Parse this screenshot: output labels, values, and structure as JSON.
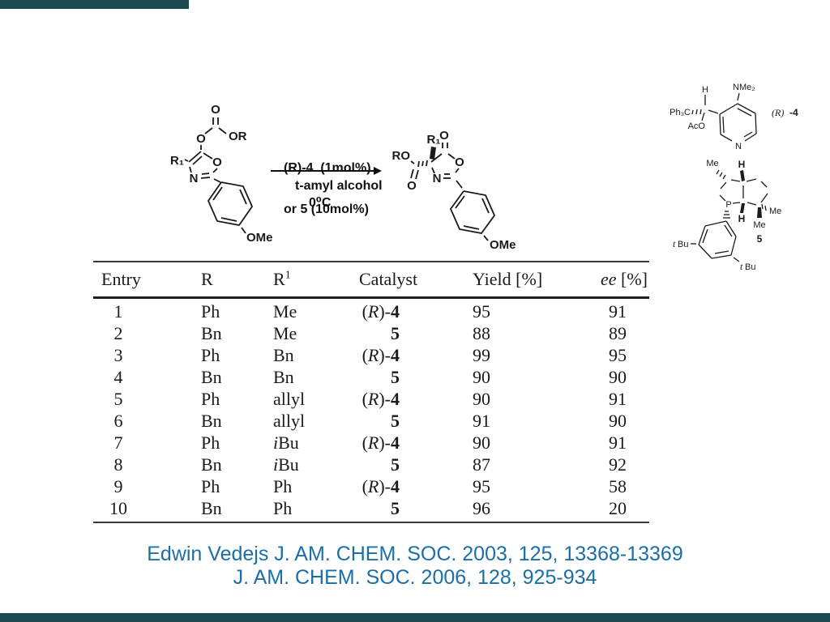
{
  "theme": {
    "accent_bar_color": "#1c4a4e",
    "citation_color": "#1b6fa8"
  },
  "scheme": {
    "reactant": {
      "labels": {
        "o_top": "O",
        "o_ester": "O",
        "or": "OR",
        "r1": "R₁",
        "ring_o": "O",
        "ring_n": "N",
        "ome": "OMe"
      }
    },
    "arrow": {
      "line1": "(R)-4  (1mol%)",
      "line2": "or 5 (10mol%)",
      "below1": "t-amyl alcohol",
      "below2": "0⁰C"
    },
    "product": {
      "labels": {
        "o_top": "O",
        "r1": "R₁",
        "ro": "RO",
        "o_ester": "O",
        "ring_o": "O",
        "ring_n": "N",
        "ome": "OMe"
      }
    },
    "catalyst4": {
      "labels": {
        "h": "H",
        "nme2": "NMe₂",
        "ph3c": "Ph₃C",
        "aco": "AcO",
        "n": "N"
      },
      "tag_r": "(R)",
      "tag_num": "-4"
    },
    "catalyst5": {
      "labels": {
        "me_top": "Me",
        "h_top": "H",
        "p": "P",
        "h_bottom": "H",
        "me_right": "Me",
        "me_bottom": "Me",
        "tbu_left_i": "t",
        "tbu_left": "Bu",
        "tbu_right_i": "t",
        "tbu_right": "Bu"
      },
      "tag": "5"
    }
  },
  "table": {
    "headers": [
      {
        "t": "Entry"
      },
      {
        "t": "R"
      },
      {
        "t": "R",
        "sup": "1"
      },
      {
        "t": "Catalyst"
      },
      {
        "t": "Yield [%]"
      },
      {
        "it": "ee",
        "t": " [%]"
      }
    ],
    "rows": [
      {
        "e": "1",
        "r": "Ph",
        "r1i": "",
        "r1": "Me",
        "c1": "(",
        "ci": "R",
        "c2": ")-",
        "cb": "4",
        "y": "95",
        "ee": "91"
      },
      {
        "e": "2",
        "r": "Bn",
        "r1i": "",
        "r1": "Me",
        "c1": "",
        "ci": "",
        "c2": "",
        "cb": "5",
        "y": "88",
        "ee": "89"
      },
      {
        "e": "3",
        "r": "Ph",
        "r1i": "",
        "r1": "Bn",
        "c1": "(",
        "ci": "R",
        "c2": ")-",
        "cb": "4",
        "y": "99",
        "ee": "95"
      },
      {
        "e": "4",
        "r": "Bn",
        "r1i": "",
        "r1": "Bn",
        "c1": "",
        "ci": "",
        "c2": "",
        "cb": "5",
        "y": "90",
        "ee": "90"
      },
      {
        "e": "5",
        "r": "Ph",
        "r1i": "",
        "r1": "allyl",
        "c1": "(",
        "ci": "R",
        "c2": ")-",
        "cb": "4",
        "y": "90",
        "ee": "91"
      },
      {
        "e": "6",
        "r": "Bn",
        "r1i": "",
        "r1": "allyl",
        "c1": "",
        "ci": "",
        "c2": "",
        "cb": "5",
        "y": "91",
        "ee": "90"
      },
      {
        "e": "7",
        "r": "Ph",
        "r1i": "i",
        "r1": "Bu",
        "c1": "(",
        "ci": "R",
        "c2": ")-",
        "cb": "4",
        "y": "90",
        "ee": "91"
      },
      {
        "e": "8",
        "r": "Bn",
        "r1i": "i",
        "r1": "Bu",
        "c1": "",
        "ci": "",
        "c2": "",
        "cb": "5",
        "y": "87",
        "ee": "92"
      },
      {
        "e": "9",
        "r": "Ph",
        "r1i": "",
        "r1": "Ph",
        "c1": "(",
        "ci": "R",
        "c2": ")-",
        "cb": "4",
        "y": "95",
        "ee": "58"
      },
      {
        "e": "10",
        "r": "Bn",
        "r1i": "",
        "r1": "Ph",
        "c1": "",
        "ci": "",
        "c2": "",
        "cb": "5",
        "y": "96",
        "ee": "20"
      }
    ]
  },
  "citation": {
    "line1": "Edwin Vedejs J. AM. CHEM. SOC. 2003, 125, 13368-13369",
    "line2": "J. AM. CHEM. SOC. 2006, 128, 925-934"
  }
}
